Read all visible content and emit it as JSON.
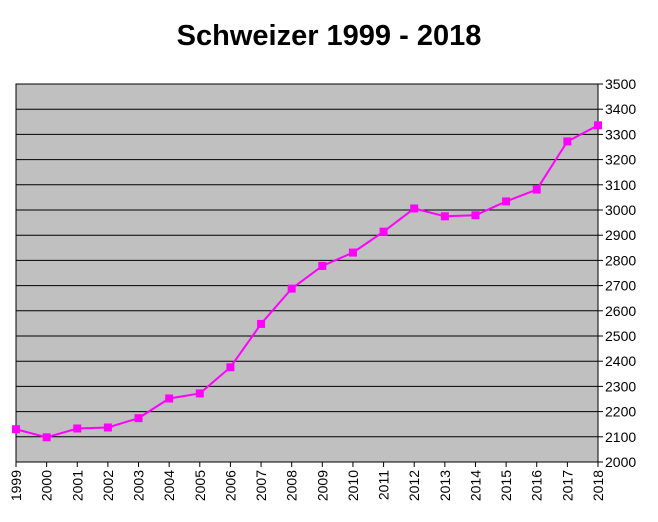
{
  "chart_data": {
    "type": "line",
    "title": "Schweizer 1999 - 2018",
    "xlabel": "",
    "ylabel": "",
    "categories": [
      "1999",
      "2000",
      "2001",
      "2002",
      "2003",
      "2004",
      "2005",
      "2006",
      "2007",
      "2008",
      "2009",
      "2010",
      "2011",
      "2012",
      "2013",
      "2014",
      "2015",
      "2016",
      "2017",
      "2018"
    ],
    "series": [
      {
        "values": [
          2130,
          2098,
          2133,
          2137,
          2174,
          2252,
          2272,
          2376,
          2548,
          2688,
          2778,
          2831,
          2914,
          3006,
          2975,
          2979,
          3034,
          3081,
          3272,
          3336
        ],
        "color": "#FF00FF"
      }
    ],
    "ylim": [
      2000,
      3500
    ],
    "yticks": [
      2000,
      2100,
      2200,
      2300,
      2400,
      2500,
      2600,
      2700,
      2800,
      2900,
      3000,
      3100,
      3200,
      3300,
      3400,
      3500
    ],
    "y_axis_side": "right",
    "grid": true,
    "legend": "none",
    "plot_background": "#C0C0C0",
    "marker": "square"
  }
}
